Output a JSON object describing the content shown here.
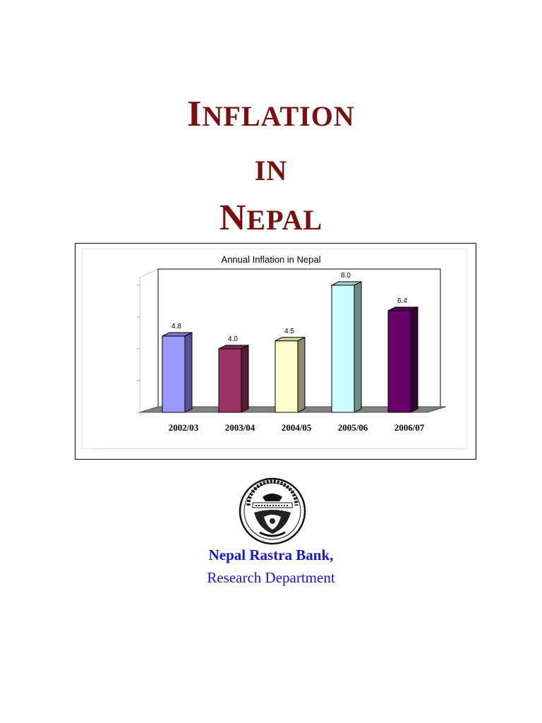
{
  "cover": {
    "title_line1_initial": "I",
    "title_line1_rest": "NFLATION",
    "title_line2": "IN",
    "title_line3_initial": "N",
    "title_line3_rest": "EPAL"
  },
  "footer": {
    "bank_name": "Nepal Rastra Bank,",
    "department": "Research Department"
  },
  "colors": {
    "title": "#7a0f12",
    "footer_text": "#1515cc"
  },
  "chart_data": {
    "type": "bar",
    "title": "Annual Inflation in Nepal",
    "xlabel": "",
    "ylabel": "",
    "categories": [
      "2002/03",
      "2003/04",
      "2004/05",
      "2005/06",
      "2006/07"
    ],
    "values": [
      4.8,
      4.0,
      4.5,
      8.0,
      6.4
    ],
    "data_labels": [
      "4.8",
      "4.0",
      "4.5",
      "8.0",
      "6.4"
    ],
    "bar_colors": [
      "#9999ff",
      "#993366",
      "#ffffcc",
      "#ccffff",
      "#660066"
    ],
    "ylim": [
      0,
      9
    ],
    "style": "3d-column",
    "grid": false,
    "legend": "none"
  }
}
